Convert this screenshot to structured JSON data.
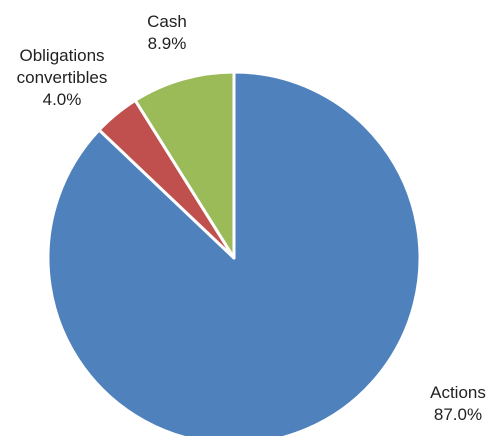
{
  "chart_data": {
    "type": "pie",
    "slices": [
      {
        "label": "Actions",
        "value": 87.0,
        "display": "87.0%",
        "color": "#4F81BD"
      },
      {
        "label": "Obligations convertibles",
        "label_lines": [
          "Obligations",
          "convertibles"
        ],
        "value": 4.0,
        "display": "4.0%",
        "color": "#C0504D"
      },
      {
        "label": "Cash",
        "value": 8.9,
        "display": "8.9%",
        "color": "#9BBB59"
      }
    ],
    "start_angle_deg": 0,
    "direction": "clockwise",
    "slice_border_color": "#FFFFFF"
  }
}
